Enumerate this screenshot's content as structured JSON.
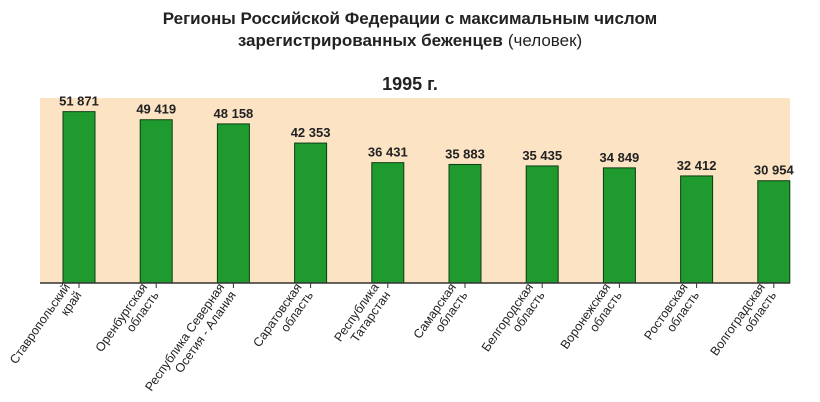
{
  "chart_data": {
    "type": "bar",
    "title_line1": "Регионы Российской Федерации с максимальным числом",
    "title_line2_bold": "зарегистрированных беженцев",
    "title_line2_normal": "(человек)",
    "subtitle": "1995 г.",
    "categories": [
      [
        "Ставропольский",
        "край"
      ],
      [
        "Оренбургская",
        "область"
      ],
      [
        "Республика Северная",
        "Осетия - Алания"
      ],
      [
        "Саратовская",
        "область"
      ],
      [
        "Республика",
        "Татарстан"
      ],
      [
        "Самарская",
        "область"
      ],
      [
        "Белгородская",
        "область"
      ],
      [
        "Воронежская",
        "область"
      ],
      [
        "Ростовская",
        "область"
      ],
      [
        "Волгоградская",
        "область"
      ]
    ],
    "values": [
      51871,
      49419,
      48158,
      42353,
      36431,
      35883,
      35435,
      34849,
      32412,
      30954
    ],
    "value_labels": [
      "51 871",
      "49 419",
      "48 158",
      "42 353",
      "36 431",
      "35 883",
      "35 435",
      "34 849",
      "32 412",
      "30 954"
    ],
    "ylim": [
      0,
      56000
    ],
    "grid": false,
    "colors": {
      "bar": "#1e9a2e",
      "bar_edge": "#0d3d12",
      "plot_bg": "#fbe3c4",
      "axis": "#333333"
    }
  }
}
